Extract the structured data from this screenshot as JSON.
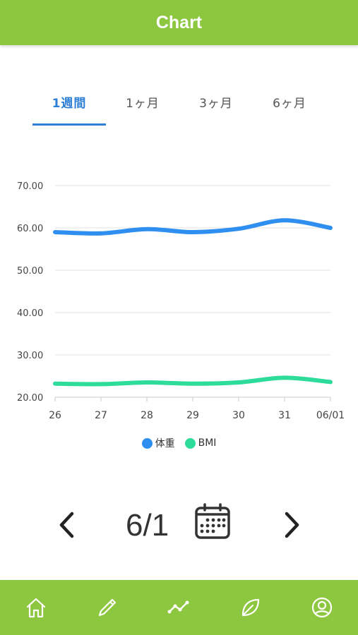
{
  "header": {
    "title": "Chart"
  },
  "tabs": [
    {
      "label": "1週間",
      "active": true
    },
    {
      "label": "1ヶ月",
      "active": false
    },
    {
      "label": "3ヶ月",
      "active": false
    },
    {
      "label": "6ヶ月",
      "active": false
    }
  ],
  "chart_data": {
    "type": "line",
    "x": [
      "26",
      "27",
      "28",
      "29",
      "30",
      "31",
      "06/01"
    ],
    "yticks": [
      "20.00",
      "30.00",
      "40.00",
      "50.00",
      "60.00",
      "70.00"
    ],
    "ylim": [
      20,
      70
    ],
    "grid": true,
    "legend_position": "bottom",
    "series": [
      {
        "name": "体重",
        "color": "#2f8ff0",
        "values": [
          59.0,
          58.7,
          59.7,
          59.0,
          59.8,
          61.8,
          60.0
        ]
      },
      {
        "name": "BMI",
        "color": "#2ddc9a",
        "values": [
          23.2,
          23.1,
          23.5,
          23.2,
          23.5,
          24.6,
          23.6
        ]
      }
    ]
  },
  "date_nav": {
    "date": "6/1",
    "prev_icon": "chevron-left-icon",
    "next_icon": "chevron-right-icon",
    "calendar_icon": "calendar-icon"
  },
  "bottom_nav": {
    "items": [
      "home-icon",
      "pencil-icon",
      "chart-icon",
      "leaf-icon",
      "user-icon"
    ],
    "background": "#8dc63f"
  }
}
